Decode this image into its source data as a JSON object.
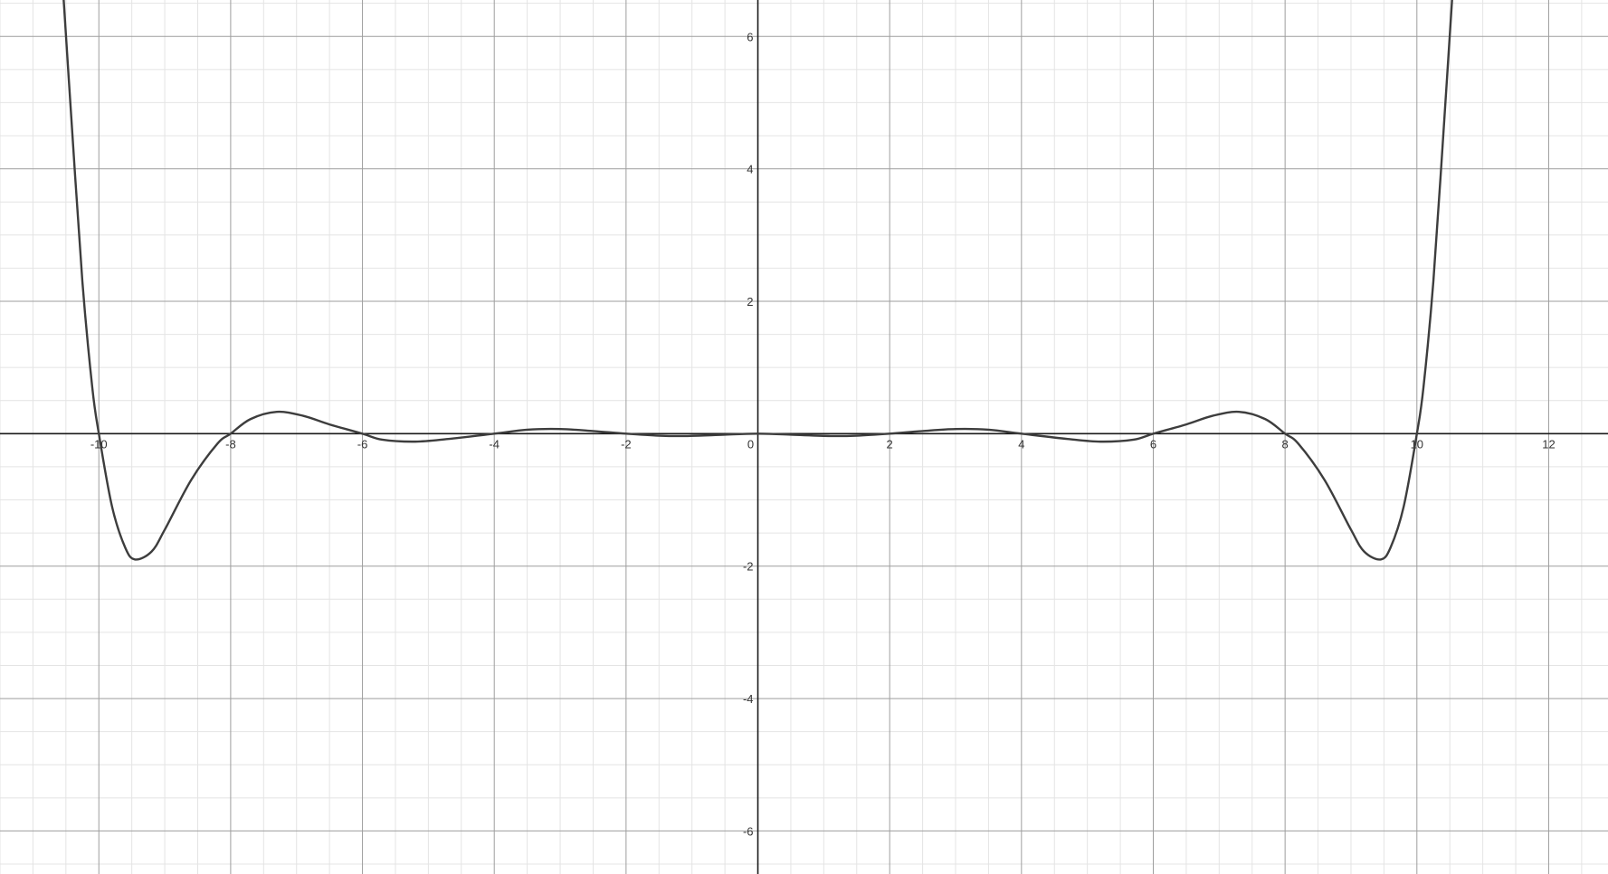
{
  "chart_data": {
    "type": "line",
    "title": "",
    "xlabel": "",
    "ylabel": "",
    "xlim": [
      -11.5,
      12.9
    ],
    "ylim": [
      -6.65,
      6.55
    ],
    "grid": true,
    "minor_grid": true,
    "x_ticks": [
      -10,
      -8,
      -6,
      -4,
      -2,
      0,
      2,
      4,
      6,
      8,
      10,
      12
    ],
    "x_tick_labels": [
      "-10",
      "-8",
      "-6",
      "-4",
      "-2",
      "0",
      "2",
      "4",
      "6",
      "8",
      "10",
      "12"
    ],
    "y_ticks": [
      -6,
      -4,
      -2,
      2,
      4,
      6
    ],
    "y_tick_labels": [
      "-6",
      "-4",
      "-2",
      "2",
      "4",
      "6"
    ],
    "series": [
      {
        "color": "#3d3d3d",
        "symmetry": "odd-degree-even-function",
        "roots": [
          -10,
          -8,
          -6,
          -4,
          -2,
          0,
          2,
          4,
          6,
          8,
          10
        ],
        "x": [
          -10.55,
          -10.4,
          -10.25,
          -10.1,
          -10.0,
          -9.8,
          -9.6,
          -9.45,
          -9.2,
          -9.0,
          -8.6,
          -8.2,
          -8.0,
          -7.7,
          -7.3,
          -6.9,
          -6.5,
          -6.0,
          -5.7,
          -5.2,
          -4.7,
          -4.0,
          -3.5,
          -3.0,
          -2.5,
          -2.0,
          -1.5,
          -1.1,
          -0.5,
          0.0,
          0.5,
          1.1,
          1.5,
          2.0,
          2.5,
          3.0,
          3.5,
          4.0,
          4.7,
          5.2,
          5.7,
          6.0,
          6.5,
          6.9,
          7.3,
          7.7,
          8.0,
          8.2,
          8.6,
          9.0,
          9.2,
          9.45,
          9.6,
          9.8,
          10.0,
          10.1,
          10.25,
          10.4,
          10.55
        ],
        "y": [
          6.8,
          4.5,
          2.3,
          0.7,
          0.0,
          -1.1,
          -1.72,
          -1.9,
          -1.78,
          -1.45,
          -0.7,
          -0.15,
          0.0,
          0.22,
          0.33,
          0.27,
          0.14,
          0.0,
          -0.09,
          -0.12,
          -0.08,
          0.0,
          0.06,
          0.07,
          0.04,
          0.0,
          -0.03,
          -0.035,
          -0.015,
          0.0,
          -0.015,
          -0.035,
          -0.03,
          0.0,
          0.04,
          0.07,
          0.06,
          0.0,
          -0.08,
          -0.12,
          -0.09,
          0.0,
          0.14,
          0.27,
          0.33,
          0.22,
          0.0,
          -0.15,
          -0.7,
          -1.45,
          -1.78,
          -1.9,
          -1.72,
          -1.1,
          0.0,
          0.7,
          2.3,
          4.5,
          6.8
        ]
      }
    ]
  }
}
